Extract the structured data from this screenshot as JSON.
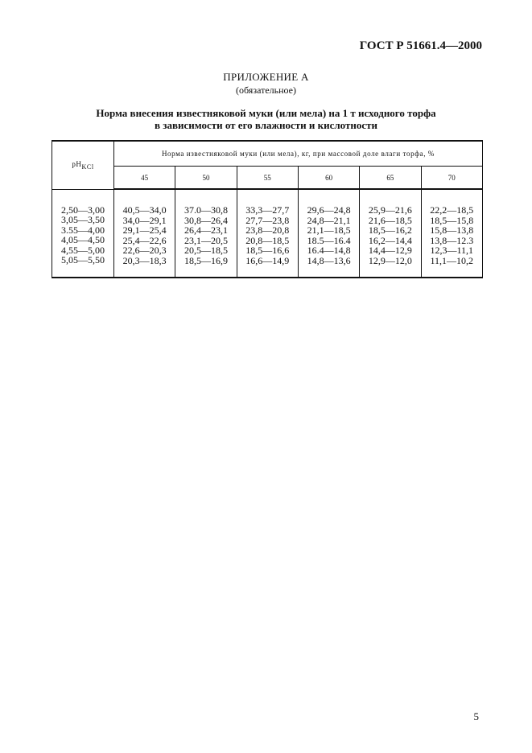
{
  "header": {
    "standard": "ГОСТ Р 51661.4—2000"
  },
  "appendix": {
    "title": "ПРИЛОЖЕНИЕ А",
    "subtitle": "(обязательное)"
  },
  "table_title": {
    "line1": "Норма внесения известняковой муки (или мела) на 1 т исходного торфа",
    "line2": "в зависимости от его влажности и кислотности"
  },
  "table": {
    "ph_header": "pH",
    "ph_sub": "KCl",
    "group_header": "Норма известняковой муки (или мела), кг, при массовой доле влаги торфа, %",
    "columns": [
      "45",
      "50",
      "55",
      "60",
      "65",
      "70"
    ],
    "rows": [
      [
        "2,50—3,00",
        "40,5—34,0",
        "37.0—30,8",
        "33,3—27,7",
        "29,6—24,8",
        "25,9—21,6",
        "22,2—18,5"
      ],
      [
        "3,05—3,50",
        "34,0—29,1",
        "30,8—26,4",
        "27,7—23,8",
        "24,8—21,1",
        "21,6—18,5",
        "18,5—15,8"
      ],
      [
        "3.55—4,00",
        "29,1—25,4",
        "26,4—23,1",
        "23,8—20,8",
        "21,1—18,5",
        "18,5—16,2",
        "15,8—13,8"
      ],
      [
        "4,05—4,50",
        "25,4—22,6",
        "23,1—20,5",
        "20,8—18,5",
        "18.5—16.4",
        "16,2—14,4",
        "13,8—12.3"
      ],
      [
        "4,55—5,00",
        "22,6—20,3",
        "20,5—18,5",
        "18,5—16,6",
        "16.4—14,8",
        "14,4—12,9",
        "12,3—11,1"
      ],
      [
        "5,05—5,50",
        "20,3—18,3",
        "18,5—16,9",
        "16,6—14,9",
        "14,8—13,6",
        "12,9—12,0",
        "11,1—10,2"
      ]
    ]
  },
  "footer": {
    "page_number": "5"
  }
}
